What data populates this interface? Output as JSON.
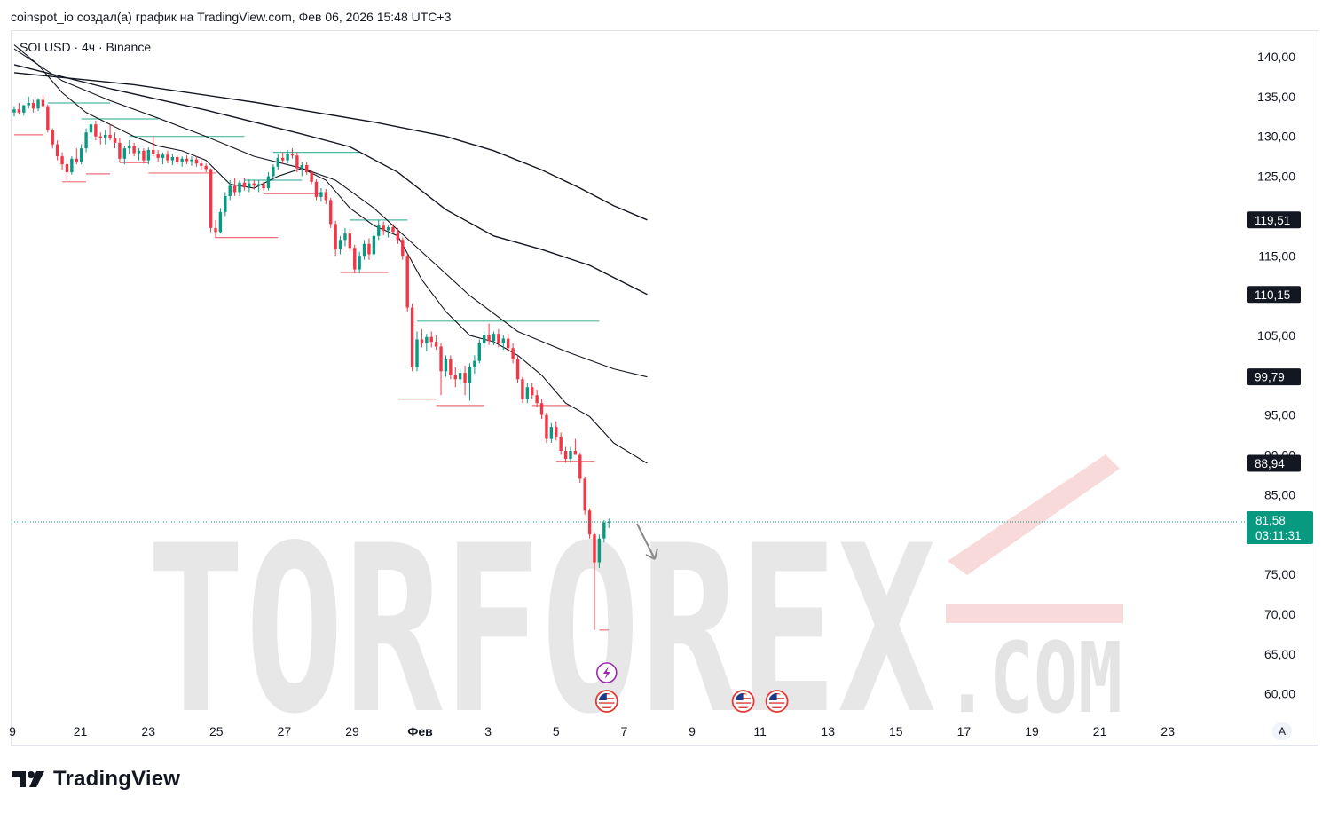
{
  "header": {
    "attribution": "coinspot_io создал(а) график на TradingView.com, Фев 06, 2026 15:48 UTC+3"
  },
  "symbol": {
    "title": "SOLUSD · 4ч · Binance"
  },
  "footer": {
    "brand": "TradingView",
    "logo_icon": "tradingview-logo-icon"
  },
  "auto_label": "A",
  "watermark": {
    "main": "TORFOREX",
    "suffix": ".COM"
  },
  "colors": {
    "up": "#089981",
    "down": "#f23645",
    "ma": "#131722",
    "current_price": "#089981",
    "badge_dark": "#131722",
    "watermark_red": "#f5c3c3",
    "watermark_gray": "#e3e3e3"
  },
  "chart_data": {
    "type": "candlestick",
    "symbol": "SOLUSD",
    "timeframe": "4ч",
    "exchange": "Binance",
    "x_ticks": [
      "9",
      "21",
      "23",
      "25",
      "27",
      "29",
      "Фев",
      "3",
      "5",
      "7",
      "9",
      "11",
      "13",
      "15",
      "17",
      "19",
      "21",
      "23"
    ],
    "y_ticks": [
      "140,00",
      "135,00",
      "130,00",
      "125,00",
      "120,00",
      "115,00",
      "110,00",
      "105,00",
      "100,00",
      "95,00",
      "90,00",
      "85,00",
      "80,00",
      "75,00",
      "70,00",
      "65,00",
      "60,00"
    ],
    "ylim": [
      57,
      142
    ],
    "price_labels": [
      {
        "value": 119.51,
        "text": "119,51",
        "kind": "ma"
      },
      {
        "value": 110.15,
        "text": "110,15",
        "kind": "ma"
      },
      {
        "value": 99.79,
        "text": "99,79",
        "kind": "ma"
      },
      {
        "value": 88.94,
        "text": "88,94",
        "kind": "ma"
      }
    ],
    "current_price": {
      "value": 81.58,
      "text": "81,58",
      "countdown": "03:11:31"
    },
    "candles": [
      [
        133.0,
        133.8,
        132.5,
        133.4
      ],
      [
        133.4,
        134.2,
        132.8,
        133.0
      ],
      [
        133.0,
        134.0,
        132.6,
        133.9
      ],
      [
        133.9,
        135.0,
        133.5,
        134.2
      ],
      [
        134.2,
        134.6,
        133.0,
        133.5
      ],
      [
        133.5,
        134.8,
        133.2,
        134.6
      ],
      [
        134.6,
        135.2,
        133.5,
        133.8
      ],
      [
        133.8,
        134.0,
        130.5,
        130.8
      ],
      [
        130.8,
        131.0,
        128.5,
        129.0
      ],
      [
        129.0,
        129.5,
        127.0,
        127.5
      ],
      [
        127.5,
        128.0,
        125.8,
        126.5
      ],
      [
        126.5,
        127.0,
        124.5,
        125.5
      ],
      [
        125.5,
        127.5,
        125.2,
        127.2
      ],
      [
        127.2,
        128.5,
        126.5,
        126.8
      ],
      [
        126.8,
        129.0,
        126.5,
        128.5
      ],
      [
        128.5,
        131.0,
        128.0,
        130.5
      ],
      [
        130.5,
        132.0,
        129.5,
        131.5
      ],
      [
        131.5,
        132.0,
        129.5,
        130.0
      ],
      [
        130.0,
        130.5,
        129.0,
        129.8
      ],
      [
        129.8,
        130.8,
        129.0,
        130.2
      ],
      [
        130.2,
        131.5,
        129.5,
        129.8
      ],
      [
        129.8,
        130.5,
        128.5,
        129.2
      ],
      [
        129.2,
        129.8,
        126.8,
        127.2
      ],
      [
        127.2,
        128.8,
        126.5,
        128.5
      ],
      [
        128.5,
        129.5,
        127.8,
        128.8
      ],
      [
        128.8,
        129.2,
        127.5,
        127.9
      ],
      [
        127.9,
        128.5,
        127.0,
        128.2
      ],
      [
        128.2,
        128.5,
        126.6,
        127.0
      ],
      [
        127.0,
        128.6,
        126.5,
        128.3
      ],
      [
        128.3,
        130.0,
        127.5,
        127.8
      ],
      [
        127.8,
        128.3,
        126.8,
        127.3
      ],
      [
        127.3,
        128.0,
        126.5,
        127.7
      ],
      [
        127.7,
        128.2,
        126.6,
        127.0
      ],
      [
        127.0,
        127.8,
        126.4,
        127.4
      ],
      [
        127.4,
        127.6,
        126.5,
        126.8
      ],
      [
        126.8,
        127.5,
        126.2,
        127.2
      ],
      [
        127.2,
        127.6,
        126.5,
        126.9
      ],
      [
        126.9,
        127.5,
        126.3,
        127.1
      ],
      [
        127.1,
        127.5,
        126.2,
        126.6
      ],
      [
        126.6,
        127.0,
        125.8,
        126.3
      ],
      [
        126.3,
        126.6,
        125.5,
        125.9
      ],
      [
        125.9,
        126.0,
        118.0,
        118.5
      ],
      [
        118.5,
        119.5,
        117.2,
        118.0
      ],
      [
        118.0,
        121.0,
        117.8,
        120.5
      ],
      [
        120.5,
        123.0,
        120.0,
        122.5
      ],
      [
        122.5,
        124.5,
        122.0,
        123.8
      ],
      [
        123.8,
        124.8,
        122.5,
        123.0
      ],
      [
        123.0,
        124.5,
        122.5,
        124.2
      ],
      [
        124.2,
        124.8,
        123.2,
        123.6
      ],
      [
        123.6,
        124.6,
        123.0,
        124.1
      ],
      [
        124.1,
        124.5,
        123.3,
        123.8
      ],
      [
        123.8,
        124.5,
        123.0,
        124.0
      ],
      [
        124.0,
        124.3,
        123.2,
        123.5
      ],
      [
        123.5,
        125.5,
        123.2,
        125.0
      ],
      [
        125.0,
        126.5,
        124.5,
        126.2
      ],
      [
        126.2,
        127.8,
        125.8,
        127.3
      ],
      [
        127.3,
        128.0,
        126.5,
        127.0
      ],
      [
        127.0,
        128.3,
        126.6,
        127.8
      ],
      [
        127.8,
        128.5,
        127.2,
        127.6
      ],
      [
        127.6,
        128.0,
        125.5,
        126.0
      ],
      [
        126.0,
        126.8,
        125.0,
        126.4
      ],
      [
        126.4,
        126.8,
        125.2,
        125.5
      ],
      [
        125.5,
        125.8,
        124.0,
        124.3
      ],
      [
        124.3,
        124.6,
        122.0,
        122.4
      ],
      [
        122.4,
        123.5,
        121.8,
        123.0
      ],
      [
        123.0,
        123.4,
        121.5,
        122.0
      ],
      [
        122.0,
        122.3,
        118.5,
        119.0
      ],
      [
        119.0,
        119.4,
        115.0,
        115.8
      ],
      [
        115.8,
        117.5,
        115.2,
        117.0
      ],
      [
        117.0,
        118.5,
        116.2,
        117.8
      ],
      [
        117.8,
        118.3,
        115.5,
        116.0
      ],
      [
        116.0,
        116.4,
        112.8,
        113.3
      ],
      [
        113.3,
        115.5,
        112.8,
        115.0
      ],
      [
        115.0,
        117.0,
        114.5,
        116.5
      ],
      [
        116.5,
        117.2,
        114.5,
        115.2
      ],
      [
        115.2,
        118.0,
        114.8,
        117.5
      ],
      [
        117.5,
        119.5,
        117.0,
        118.8
      ],
      [
        118.8,
        119.3,
        117.6,
        118.2
      ],
      [
        118.2,
        118.8,
        117.3,
        118.6
      ],
      [
        118.6,
        119.0,
        117.8,
        118.0
      ],
      [
        118.0,
        118.5,
        116.5,
        117.0
      ],
      [
        117.0,
        117.3,
        114.5,
        115.0
      ],
      [
        115.0,
        115.3,
        108.0,
        108.5
      ],
      [
        108.5,
        109.0,
        100.5,
        101.0
      ],
      [
        101.0,
        105.5,
        100.5,
        104.5
      ],
      [
        104.5,
        105.8,
        103.5,
        104.0
      ],
      [
        104.0,
        105.2,
        103.0,
        104.8
      ],
      [
        104.8,
        105.5,
        103.5,
        104.2
      ],
      [
        104.2,
        105.0,
        103.2,
        103.6
      ],
      [
        103.6,
        104.0,
        97.5,
        100.5
      ],
      [
        100.5,
        102.5,
        99.8,
        102.0
      ],
      [
        102.0,
        102.5,
        99.5,
        100.0
      ],
      [
        100.0,
        101.0,
        98.5,
        99.5
      ],
      [
        99.5,
        100.8,
        98.8,
        100.3
      ],
      [
        100.3,
        101.2,
        97.5,
        99.0
      ],
      [
        99.0,
        101.5,
        96.8,
        101.0
      ],
      [
        101.0,
        102.5,
        100.2,
        101.8
      ],
      [
        101.8,
        104.5,
        101.5,
        104.0
      ],
      [
        104.0,
        105.5,
        103.5,
        105.0
      ],
      [
        105.0,
        106.5,
        103.8,
        104.3
      ],
      [
        104.3,
        105.5,
        103.8,
        105.2
      ],
      [
        105.2,
        105.8,
        103.5,
        104.0
      ],
      [
        104.0,
        105.0,
        103.2,
        104.6
      ],
      [
        104.6,
        105.2,
        103.0,
        103.4
      ],
      [
        103.4,
        104.0,
        101.5,
        102.0
      ],
      [
        102.0,
        102.5,
        99.0,
        99.5
      ],
      [
        99.5,
        99.8,
        96.5,
        97.0
      ],
      [
        97.0,
        99.0,
        96.5,
        98.5
      ],
      [
        98.5,
        99.0,
        97.0,
        97.5
      ],
      [
        97.5,
        98.2,
        96.0,
        96.5
      ],
      [
        96.5,
        97.0,
        94.5,
        95.0
      ],
      [
        95.0,
        95.3,
        91.5,
        92.0
      ],
      [
        92.0,
        94.0,
        91.5,
        93.5
      ],
      [
        93.5,
        94.2,
        91.8,
        92.3
      ],
      [
        92.3,
        92.8,
        90.0,
        90.5
      ],
      [
        90.5,
        91.0,
        89.0,
        89.5
      ],
      [
        89.5,
        91.0,
        89.0,
        90.5
      ],
      [
        90.5,
        92.0,
        90.0,
        90.0
      ],
      [
        90.0,
        90.3,
        86.5,
        87.0
      ],
      [
        87.0,
        87.3,
        82.5,
        83.0
      ],
      [
        83.0,
        83.3,
        79.5,
        80.0
      ],
      [
        80.0,
        80.3,
        68.0,
        76.5
      ],
      [
        76.5,
        80.0,
        75.8,
        79.5
      ],
      [
        79.5,
        81.8,
        79.0,
        81.5
      ],
      [
        81.5,
        82.0,
        80.8,
        81.58
      ]
    ],
    "moving_averages": [
      {
        "period": 200,
        "last_value": 119.51,
        "points": [
          [
            0,
            138.0
          ],
          [
            25,
            136.5
          ],
          [
            50,
            134.3
          ],
          [
            75,
            131.8
          ],
          [
            90,
            130.0
          ],
          [
            100,
            128.2
          ],
          [
            110,
            125.8
          ],
          [
            118,
            123.5
          ],
          [
            125,
            121.3
          ],
          [
            132,
            119.51
          ]
        ]
      },
      {
        "period": 100,
        "last_value": 110.15,
        "points": [
          [
            0,
            139.0
          ],
          [
            20,
            136.0
          ],
          [
            40,
            133.3
          ],
          [
            60,
            130.3
          ],
          [
            70,
            128.7
          ],
          [
            80,
            125.5
          ],
          [
            90,
            120.8
          ],
          [
            100,
            117.5
          ],
          [
            110,
            115.8
          ],
          [
            120,
            113.8
          ],
          [
            132,
            110.15
          ]
        ]
      },
      {
        "period": 50,
        "last_value": 99.79,
        "points": [
          [
            0,
            141.0
          ],
          [
            10,
            137.0
          ],
          [
            20,
            134.5
          ],
          [
            30,
            132.3
          ],
          [
            40,
            130.0
          ],
          [
            50,
            127.5
          ],
          [
            60,
            126.0
          ],
          [
            67,
            124.5
          ],
          [
            75,
            121.0
          ],
          [
            85,
            115.5
          ],
          [
            95,
            110.0
          ],
          [
            105,
            105.5
          ],
          [
            115,
            103.0
          ],
          [
            125,
            100.8
          ],
          [
            132,
            99.79
          ]
        ]
      },
      {
        "period": 20,
        "last_value": 88.94,
        "points": [
          [
            0,
            141.5
          ],
          [
            5,
            139.0
          ],
          [
            10,
            135.5
          ],
          [
            15,
            133.0
          ],
          [
            20,
            131.5
          ],
          [
            25,
            130.0
          ],
          [
            30,
            128.8
          ],
          [
            35,
            128.2
          ],
          [
            40,
            127.0
          ],
          [
            45,
            124.0
          ],
          [
            50,
            123.5
          ],
          [
            55,
            125.0
          ],
          [
            60,
            126.0
          ],
          [
            65,
            124.5
          ],
          [
            70,
            121.0
          ],
          [
            75,
            118.8
          ],
          [
            80,
            117.5
          ],
          [
            85,
            112.0
          ],
          [
            90,
            108.0
          ],
          [
            95,
            105.0
          ],
          [
            100,
            104.2
          ],
          [
            105,
            102.5
          ],
          [
            110,
            100.0
          ],
          [
            115,
            96.5
          ],
          [
            120,
            94.8
          ],
          [
            125,
            91.5
          ],
          [
            132,
            88.94
          ]
        ]
      }
    ],
    "level_lines": [
      {
        "from": 7,
        "to": 20,
        "value": 134.2,
        "color": "up"
      },
      {
        "from": 14,
        "to": 30,
        "value": 132.2,
        "color": "up"
      },
      {
        "from": 24,
        "to": 48,
        "value": 130.0,
        "color": "up"
      },
      {
        "from": 48,
        "to": 60,
        "value": 124.5,
        "color": "up"
      },
      {
        "from": 54,
        "to": 72,
        "value": 128.0,
        "color": "up"
      },
      {
        "from": 70,
        "to": 82,
        "value": 119.5,
        "color": "up"
      },
      {
        "from": 84,
        "to": 122,
        "value": 106.8,
        "color": "up"
      },
      {
        "from": 0,
        "to": 6,
        "value": 130.2,
        "color": "down"
      },
      {
        "from": 10,
        "to": 15,
        "value": 124.3,
        "color": "down"
      },
      {
        "from": 15,
        "to": 20,
        "value": 125.3,
        "color": "down"
      },
      {
        "from": 22,
        "to": 28,
        "value": 126.7,
        "color": "down"
      },
      {
        "from": 28,
        "to": 42,
        "value": 125.4,
        "color": "down"
      },
      {
        "from": 42,
        "to": 55,
        "value": 117.3,
        "color": "down"
      },
      {
        "from": 52,
        "to": 64,
        "value": 122.8,
        "color": "down"
      },
      {
        "from": 68,
        "to": 78,
        "value": 112.9,
        "color": "down"
      },
      {
        "from": 80,
        "to": 88,
        "value": 97.0,
        "color": "down"
      },
      {
        "from": 88,
        "to": 98,
        "value": 96.2,
        "color": "down"
      },
      {
        "from": 108,
        "to": 116,
        "value": 96.2,
        "color": "down"
      },
      {
        "from": 113,
        "to": 121,
        "value": 89.2,
        "color": "down"
      },
      {
        "from": 122,
        "to": 124,
        "value": 68.0,
        "color": "down"
      }
    ],
    "events": [
      {
        "kind": "earnings",
        "icon": "lightning-icon",
        "x": "6",
        "row": 0
      },
      {
        "kind": "economic",
        "icon": "us-flag-icon",
        "x": "6",
        "row": 1
      },
      {
        "kind": "economic",
        "icon": "us-flag-icon",
        "x": "10",
        "row": 1
      },
      {
        "kind": "economic",
        "icon": "us-flag-icon",
        "x": "11",
        "row": 1
      }
    ]
  }
}
